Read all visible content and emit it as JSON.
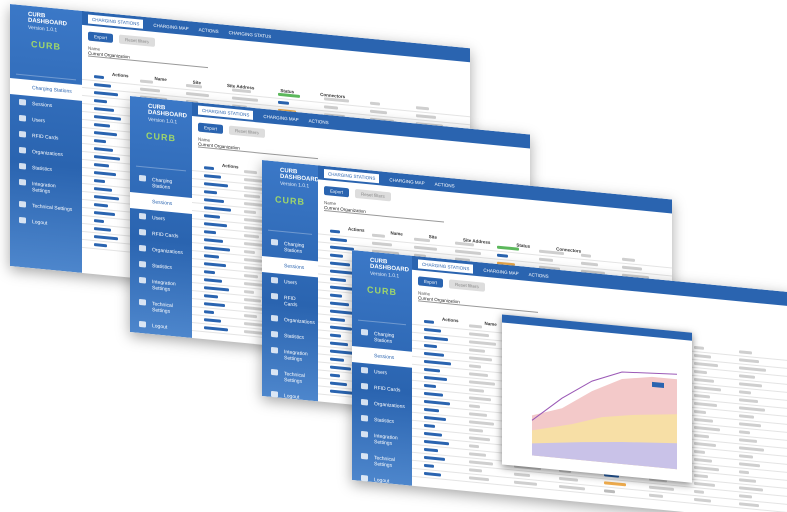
{
  "sidebar": {
    "title": "CURB DASHBOARD",
    "version": "Version 1.0.1",
    "logo": "CURB",
    "menu": [
      "Charging Stations",
      "Sessions",
      "Users",
      "RFID Cards",
      "Organizations",
      "Statistics",
      "Integration Settings",
      "Technical Settings",
      "Logout"
    ]
  },
  "tabs": [
    "CHARGING STATIONS",
    "CHARGING MAP",
    "ACTIONS",
    "CHARGING STATUS"
  ],
  "toolbar": [
    "Export",
    "Reset filters"
  ],
  "filter": {
    "label": "Name",
    "value": "Current Organization"
  },
  "columns": [
    "Actions",
    "Name",
    "Site",
    "Site Address",
    "Status",
    "Connectors"
  ]
}
